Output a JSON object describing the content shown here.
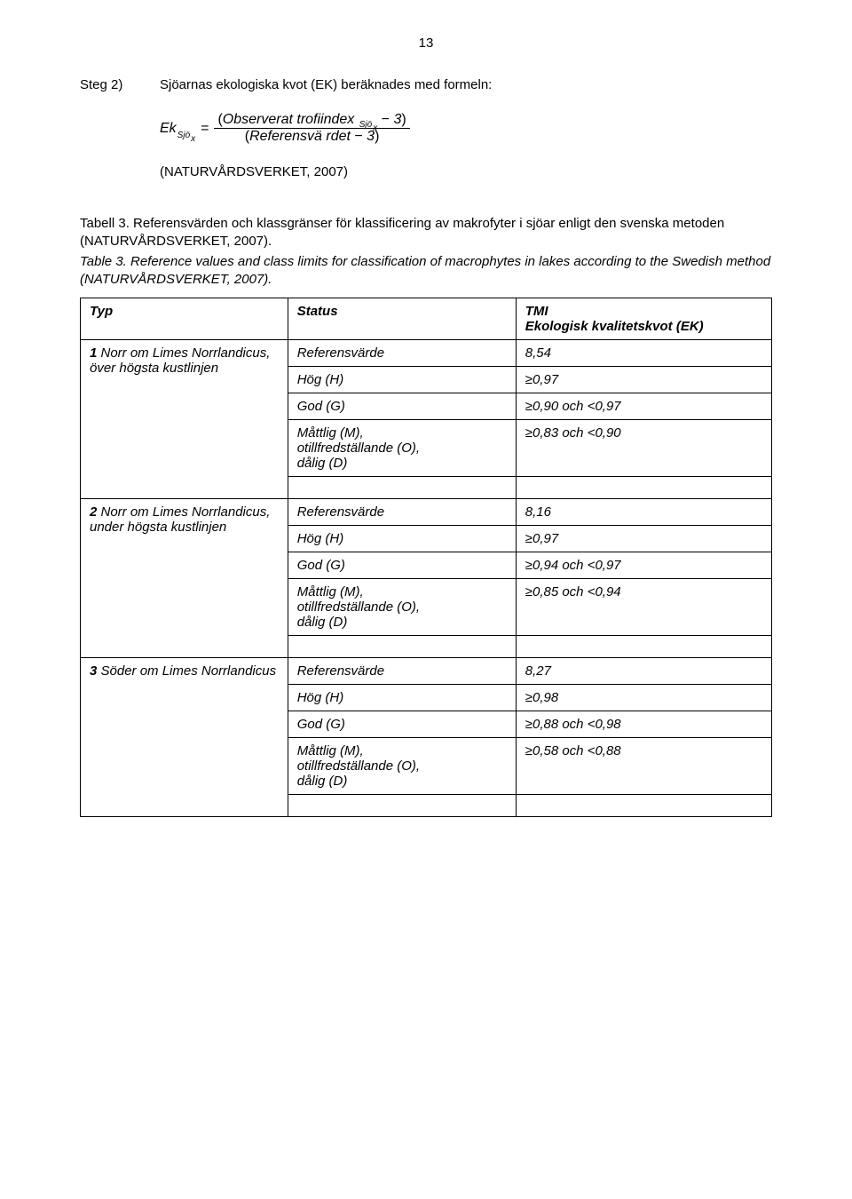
{
  "page": {
    "number": "13"
  },
  "step": {
    "label": "Steg 2)",
    "text": "Sjöarnas ekologiska kvot (EK) beräknades med formeln:"
  },
  "formula": {
    "lhs_prefix": "Ek",
    "lhs_sub_prefix": "Sjö",
    "lhs_sub_sub": "x",
    "num_part1": "Observerat trofiindex",
    "num_sub_prefix": "Sjö",
    "num_sub_sub": "x",
    "num_minus_three": "3",
    "den_text": "Referensvä rdet",
    "den_minus_three": "3"
  },
  "source": "(NATURVÅRDSVERKET, 2007)",
  "caption_sv": "Tabell 3. Referensvärden och klassgränser för klassificering av makrofyter i sjöar enligt den svenska metoden (NATURVÅRDSVERKET, 2007).",
  "caption_en": "Table 3. Reference values and class limits for classification of macrophytes in lakes according to the Swedish method (NATURVÅRDSVERKET, 2007).",
  "table": {
    "headers": {
      "type": "Typ",
      "status": "Status",
      "tmi_line1": "TMI",
      "tmi_line2": "Ekologisk kvalitetskvot (EK)"
    },
    "groups": [
      {
        "type_label_bold": "1",
        "type_text": " Norr om Limes Norrlandicus, över högsta kustlinjen",
        "rows": [
          {
            "status": "Referensvärde",
            "tmi": "8,54"
          },
          {
            "status": "Hög (H)",
            "tmi": "≥0,97"
          },
          {
            "status": "God (G)",
            "tmi": "≥0,90 och <0,97"
          },
          {
            "status": "Måttlig (M),\notillfredställande (O),\ndålig (D)",
            "tmi": "≥0,83 och <0,90"
          }
        ]
      },
      {
        "type_label_bold": "2",
        "type_text": " Norr om Limes Norrlandicus, under högsta kustlinjen",
        "rows": [
          {
            "status": "Referensvärde",
            "tmi": "8,16"
          },
          {
            "status": "Hög (H)",
            "tmi": "≥0,97"
          },
          {
            "status": "God (G)",
            "tmi": "≥0,94 och <0,97"
          },
          {
            "status": "Måttlig (M),\notillfredställande (O),\ndålig (D)",
            "tmi": "≥0,85 och <0,94"
          }
        ]
      },
      {
        "type_label_bold": "3",
        "type_text": " Söder om Limes Norrlandicus",
        "rows": [
          {
            "status": "Referensvärde",
            "tmi": "8,27"
          },
          {
            "status": "Hög (H)",
            "tmi": "≥0,98"
          },
          {
            "status": "God (G)",
            "tmi": "≥0,88 och <0,98"
          },
          {
            "status": "Måttlig (M),\notillfredställande (O),\ndålig (D)",
            "tmi": "≥0,58 och <0,88"
          }
        ]
      }
    ]
  }
}
